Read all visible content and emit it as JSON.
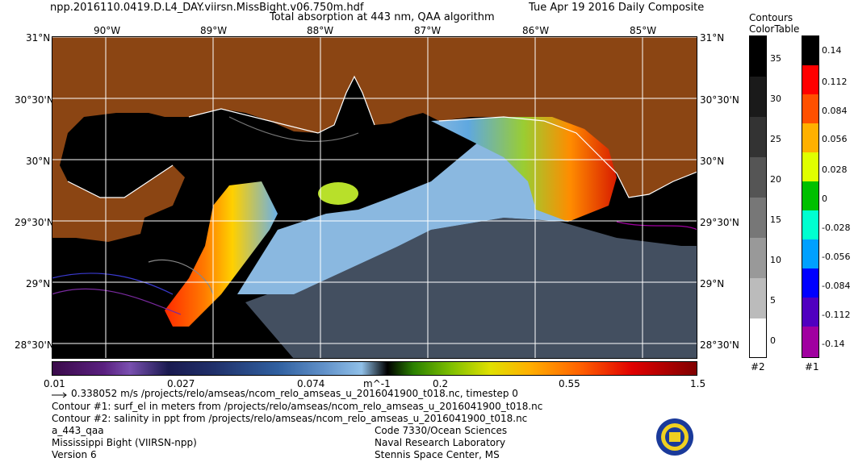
{
  "header": {
    "filename": "npp.2016110.0419.D.L4_DAY.viirsn.MissBight.v06.750m.hdf",
    "product": "Total absorption at 443 nm, QAA algorithm",
    "date": "Tue Apr 19 2016 Daily Composite"
  },
  "map": {
    "lon_labels": [
      "90°W",
      "89°W",
      "88°W",
      "87°W",
      "86°W",
      "85°W"
    ],
    "lat_labels": [
      "31°N",
      "30°30'N",
      "30°N",
      "29°30'N",
      "29°N",
      "28°30'N"
    ],
    "colors": {
      "land": "#8b4513",
      "water_nodata": "#000000",
      "grid": "#ffffff"
    }
  },
  "colorbar": {
    "unit": "m^-1",
    "tick_labels": [
      "0.01",
      "0.027",
      "0.074",
      "0.2",
      "0.55",
      "1.5"
    ]
  },
  "contours_legend": {
    "title_line1": "Contours",
    "title_line2": "ColorTable",
    "gray_labels": [
      "35",
      "30",
      "25",
      "20",
      "15",
      "10",
      "5",
      "0"
    ],
    "gray_id": "#2",
    "color_labels": [
      "0.14",
      "0.112",
      "0.084",
      "0.056",
      "0.028",
      "0",
      "-0.028",
      "-0.056",
      "-0.084",
      "-0.112",
      "-0.14"
    ],
    "color_id": "#1"
  },
  "footer": {
    "vector_note": "0.338052 m/s /projects/relo/amseas/ncom_relo_amseas_u_2016041900_t018.nc, timestep 0",
    "contour1": "Contour #1: surf_el in meters from /projects/relo/amseas/ncom_relo_amseas_u_2016041900_t018.nc",
    "contour2": "Contour #2: salinity in ppt from /projects/relo/amseas/ncom_relo_amseas_u_2016041900_t018.nc",
    "left": [
      "a_443_qaa",
      "Mississippi Bight (VIIRSN-npp)",
      "Version 6"
    ],
    "right": [
      "Code 7330/Ocean Sciences",
      "Naval Research Laboratory",
      "Stennis Space Center, MS"
    ]
  }
}
